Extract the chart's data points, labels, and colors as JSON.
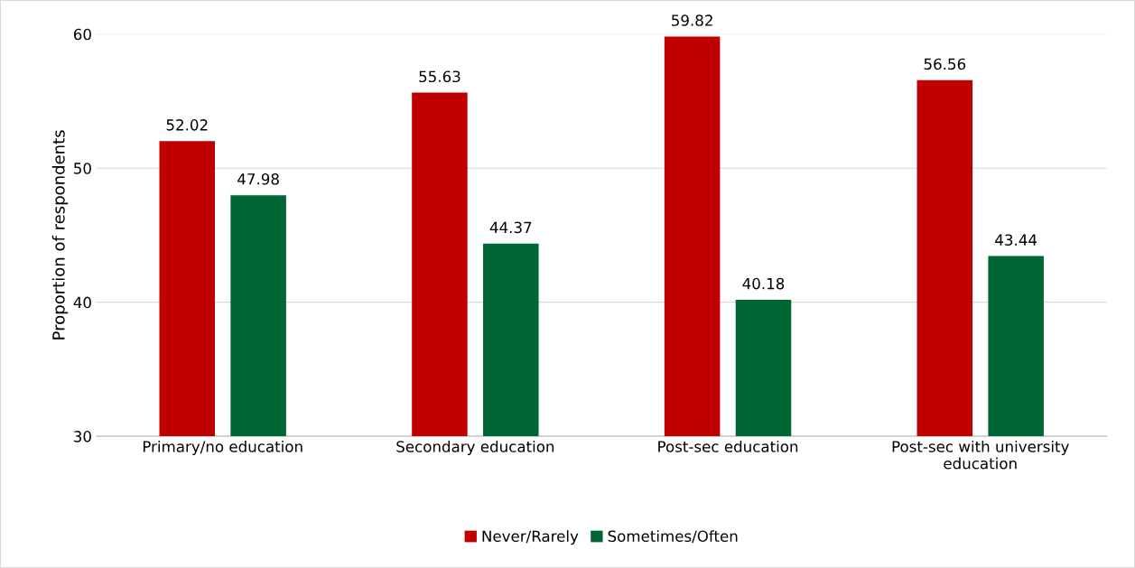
{
  "chart_data": {
    "type": "bar",
    "ylabel": "Proportion of respondents",
    "categories": [
      "Primary/no education",
      "Secondary education",
      "Post-sec education",
      "Post-sec with university\neducation"
    ],
    "series": [
      {
        "name": "Never/Rarely",
        "color": "#c00000",
        "values": [
          52.02,
          55.63,
          59.82,
          56.56
        ]
      },
      {
        "name": "Sometimes/Often",
        "color": "#006633",
        "values": [
          47.98,
          44.37,
          40.18,
          43.44
        ]
      }
    ],
    "ylim": [
      30,
      60
    ],
    "yticks": [
      30,
      40,
      50,
      60
    ],
    "grid": "y",
    "legend": "bottom",
    "data_labels": true
  }
}
